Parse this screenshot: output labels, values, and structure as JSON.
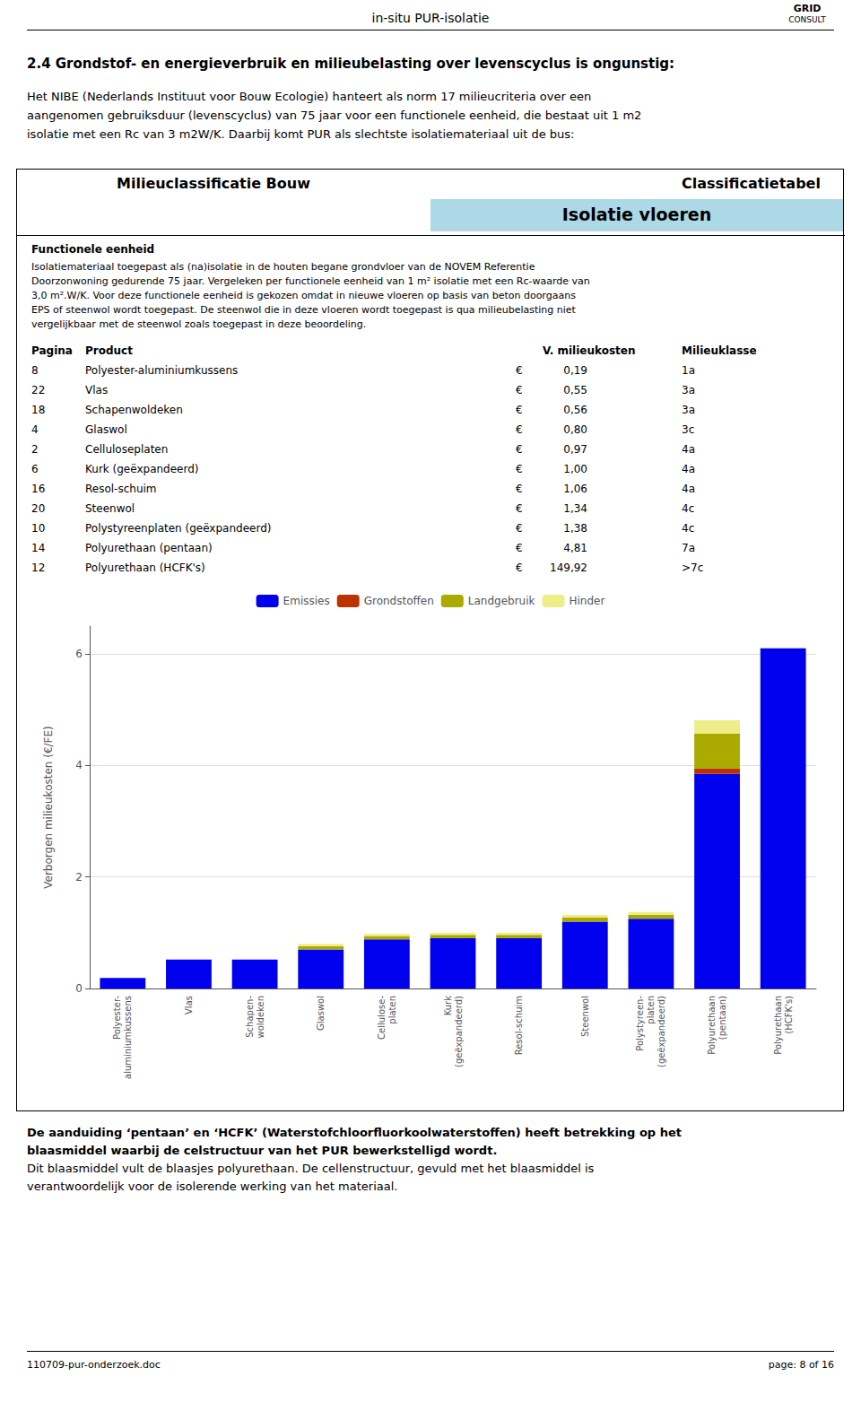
{
  "header_text": "in-situ PUR-isolatie",
  "logo": [
    "GRID",
    "CONSULT"
  ],
  "section_title": "2.4   Grondstof- en energieverbruik en milieubelasting over levenscyclus is ongunstig:",
  "intro_lines": [
    "Het NIBE (Nederlands Instituut voor Bouw Ecologie) hanteert als norm 17 milieucriteria over een",
    "aangenomen gebruiksduur (levenscyclus) van 75 jaar voor een functionele eenheid, die bestaat uit 1 m2",
    "isolatie met een Rc van 3 m2W/K. Daarbij komt PUR als slechtste isolatiemateriaal uit de bus:"
  ],
  "box_title_left": "Milieuclassificatie Bouw",
  "box_title_right": "Classificatietabel",
  "func_title": "Functionele eenheid",
  "func_lines": [
    "Isolatiemateriaal toegepast als (na)isolatie in de houten begane grondvloer van de NOVEM Referentie",
    "Doorzonwoning gedurende 75 jaar. Vergeleken per functionele eenheid van 1 m² isolatie met een Rc-waarde van",
    "3,0 m².W/K. Voor deze functionele eenheid is gekozen omdat in nieuwe vloeren op basis van beton doorgaans",
    "EPS of steenwol wordt toegepast. De steenwol die in deze vloeren wordt toegepast is qua milieubelasting niet",
    "vergelijkbaar met de steenwol zoals toegepast in deze beoordeling."
  ],
  "table_headers": [
    "Pagina",
    "Product",
    "V. milieukosten",
    "Milieuklasse"
  ],
  "table_rows": [
    [
      "8",
      "Polyester-aluminiumkussens",
      "€",
      "0,19",
      "1a"
    ],
    [
      "22",
      "Vlas",
      "€",
      "0,55",
      "3a"
    ],
    [
      "18",
      "Schapenwoldeken",
      "€",
      "0,56",
      "3a"
    ],
    [
      "4",
      "Glaswol",
      "€",
      "0,80",
      "3c"
    ],
    [
      "2",
      "Celluloseplaten",
      "€",
      "0,97",
      "4a"
    ],
    [
      "6",
      "Kurk (geëxpandeerd)",
      "€",
      "1,00",
      "4a"
    ],
    [
      "16",
      "Resol-schuim",
      "€",
      "1,06",
      "4a"
    ],
    [
      "20",
      "Steenwol",
      "€",
      "1,34",
      "4c"
    ],
    [
      "10",
      "Polystyreenplaten (geëxpandeerd)",
      "€",
      "1,38",
      "4c"
    ],
    [
      "14",
      "Polyurethaan (pentaan)",
      "€",
      "4,81",
      "7a"
    ],
    [
      "12",
      "Polyurethaan (HCFK's)",
      "€",
      "149,92",
      ">7c"
    ]
  ],
  "bottom_bold_lines": [
    "De aanduiding ‘pentaan’ en ‘HCFK’ (Waterstofchloorfluorkoolwaterstoffen) heeft betrekking op het",
    "blaasmiddel waarbij de celstructuur van het PUR bewerkstelligd wordt."
  ],
  "bottom_lines": [
    "Dit blaasmiddel vult de blaasjes polyurethaan. De cellenstructuur, gevuld met het blaasmiddel is",
    "verantwoordelijk voor de isolerende werking van het materiaal."
  ],
  "footer_doc": "110709-pur-onderzoek.doc",
  "footer_page": "page: 8 of 16",
  "chart_data": {
    "type": "bar",
    "title": "Isolatie vloeren",
    "ylabel": "Verborgen milieukosten (€/FE)",
    "categories": [
      "Polyester-\naluminiumkussens",
      "Vlas",
      "Schapen-\nwoldeken",
      "Glaswol",
      "Cellulose-\nplaten",
      "Kurk\n(geëxpandeerd)",
      "Resol-schuim",
      "Steenwol",
      "Polystyreen-\nplaten\n(geëxpandeerd)",
      "Polyurethaan\n(pentaan)",
      "Polyurethaan\n(HCFK's)"
    ],
    "series": [
      {
        "name": "Emissies",
        "color": "#0000EE",
        "values": [
          0.19,
          0.52,
          0.52,
          0.7,
          0.88,
          0.9,
          0.9,
          1.2,
          1.25,
          3.85,
          6.1
        ]
      },
      {
        "name": "Grondstoffen",
        "color": "#BB3300",
        "values": [
          0.0,
          0.0,
          0.0,
          0.0,
          0.0,
          0.0,
          0.0,
          0.0,
          0.0,
          0.1,
          0.0
        ]
      },
      {
        "name": "Landgebruik",
        "color": "#AAAA00",
        "values": [
          0.0,
          0.0,
          0.0,
          0.06,
          0.06,
          0.06,
          0.06,
          0.07,
          0.07,
          0.62,
          0.0
        ]
      },
      {
        "name": "Hinder",
        "color": "#EEEE88",
        "values": [
          0.0,
          0.0,
          0.0,
          0.04,
          0.04,
          0.04,
          0.04,
          0.05,
          0.05,
          0.24,
          0.0
        ]
      }
    ],
    "ylim": [
      0,
      6.5
    ],
    "yticks": [
      0,
      2,
      4,
      6
    ],
    "stacked": true,
    "grid": true,
    "legend": "top"
  }
}
